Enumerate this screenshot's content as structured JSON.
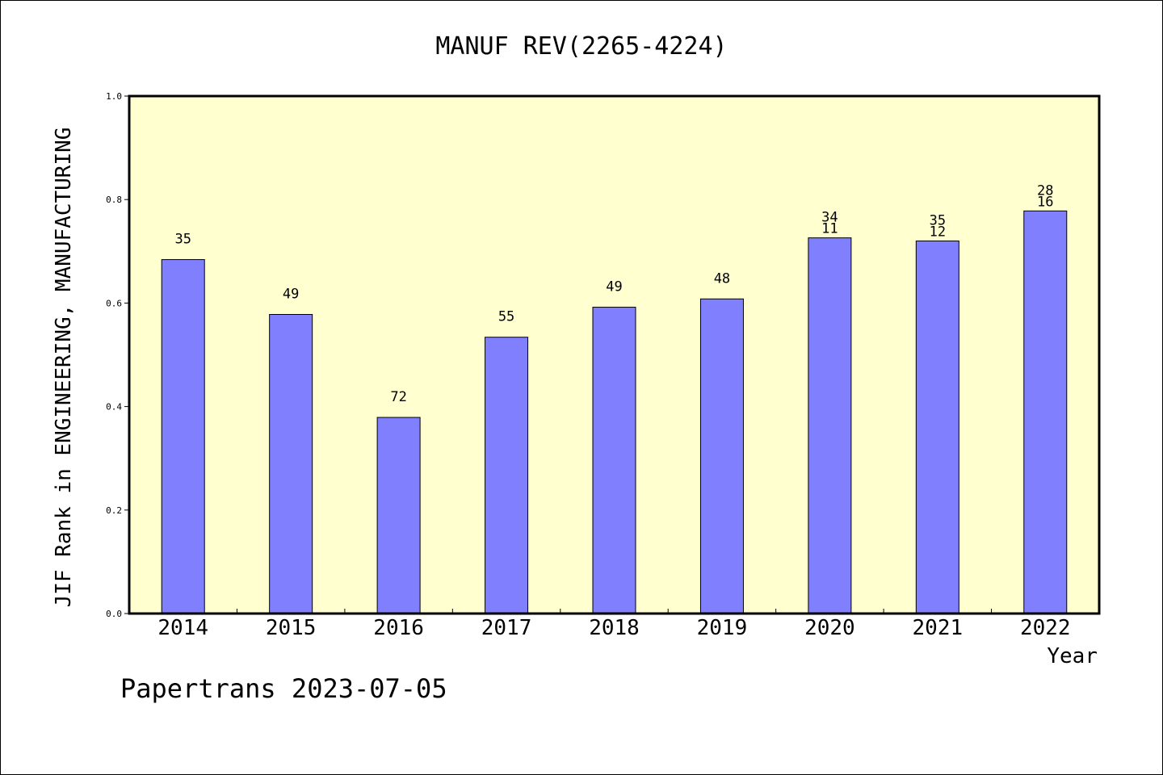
{
  "chart_data": {
    "type": "bar",
    "title": "MANUF REV(2265-4224)",
    "xlabel": "Year",
    "ylabel": "JIF Rank in ENGINEERING, MANUFACTURING",
    "ylim": [
      0,
      1.0
    ],
    "yticks": [
      "0.0",
      "0.2",
      "0.4",
      "0.6",
      "0.8",
      "1.0"
    ],
    "grid": false,
    "categories": [
      "2014",
      "2015",
      "2016",
      "2017",
      "2018",
      "2019",
      "2020",
      "2021",
      "2022"
    ],
    "values": [
      0.684,
      0.578,
      0.379,
      0.534,
      0.592,
      0.608,
      0.726,
      0.72,
      0.778
    ],
    "labels_top": [
      "35",
      "49",
      "72",
      "55",
      "49",
      "48",
      "34",
      "35",
      "28"
    ],
    "labels_bottom": [
      "",
      "",
      "",
      "",
      "",
      "",
      "11",
      "12",
      "16"
    ],
    "colors": {
      "bar": "#8080ff",
      "plot_bg": "#ffffd0",
      "axis": "#000000"
    },
    "footer": "Papertrans 2023-07-05"
  }
}
